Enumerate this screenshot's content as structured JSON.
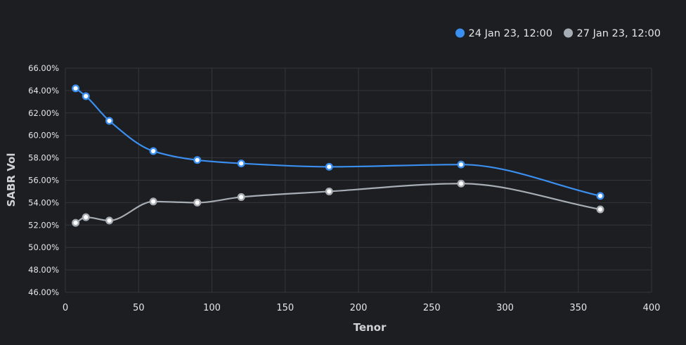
{
  "chart_data": {
    "type": "line",
    "xlabel": "Tenor",
    "ylabel": "SABR Vol",
    "xlim": [
      0,
      400
    ],
    "ylim": [
      46,
      66
    ],
    "x_ticks": [
      0,
      50,
      100,
      150,
      200,
      250,
      300,
      350,
      400
    ],
    "y_ticks": [
      46,
      48,
      50,
      52,
      54,
      56,
      58,
      60,
      62,
      64,
      66
    ],
    "y_tick_labels": [
      "46.00%",
      "48.00%",
      "50.00%",
      "52.00%",
      "54.00%",
      "56.00%",
      "58.00%",
      "60.00%",
      "62.00%",
      "64.00%",
      "66.00%"
    ],
    "grid": true,
    "legend_position": "top-right",
    "series": [
      {
        "name": "24 Jan 23, 12:00",
        "color": "#3b8ff0",
        "points": [
          [
            7,
            64.2
          ],
          [
            14,
            63.5
          ],
          [
            30,
            61.3
          ],
          [
            60,
            58.6
          ],
          [
            90,
            57.8
          ],
          [
            120,
            57.5
          ],
          [
            180,
            57.2
          ],
          [
            270,
            57.4
          ],
          [
            365,
            54.6
          ]
        ]
      },
      {
        "name": "27 Jan 23, 12:00",
        "color": "#a7adb4",
        "points": [
          [
            7,
            52.2
          ],
          [
            14,
            52.7
          ],
          [
            30,
            52.4
          ],
          [
            60,
            54.1
          ],
          [
            90,
            54.0
          ],
          [
            120,
            54.5
          ],
          [
            180,
            55.0
          ],
          [
            270,
            55.7
          ],
          [
            365,
            53.4
          ]
        ]
      }
    ]
  },
  "colors": {
    "background": "#1d1e21",
    "grid": "#34363b",
    "text": "#e6e6e6",
    "axis_title": "#cfd2d6"
  }
}
